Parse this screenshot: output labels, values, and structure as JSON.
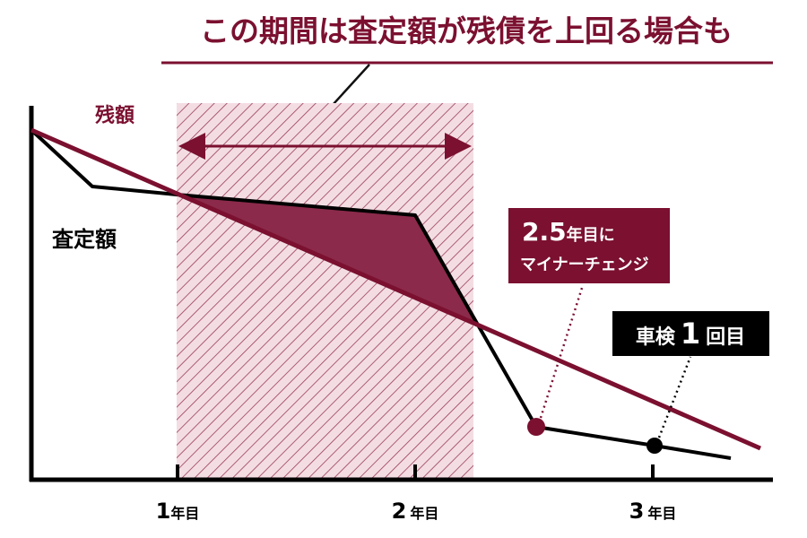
{
  "title": "この期間は査定額が残債を上回る場合も",
  "labels": {
    "remaining": "残額",
    "assessed": "査定額"
  },
  "callouts": [
    {
      "big": "2.5",
      "small": "年目に",
      "line2": "マイナーチェンジ"
    },
    {
      "pre": "車検",
      "big": "1",
      "post": "回目"
    }
  ],
  "x_ticks": [
    {
      "num": "1",
      "unit": "年目"
    },
    {
      "num": "2",
      "unit": "年目"
    },
    {
      "num": "3",
      "unit": "年目"
    }
  ]
}
